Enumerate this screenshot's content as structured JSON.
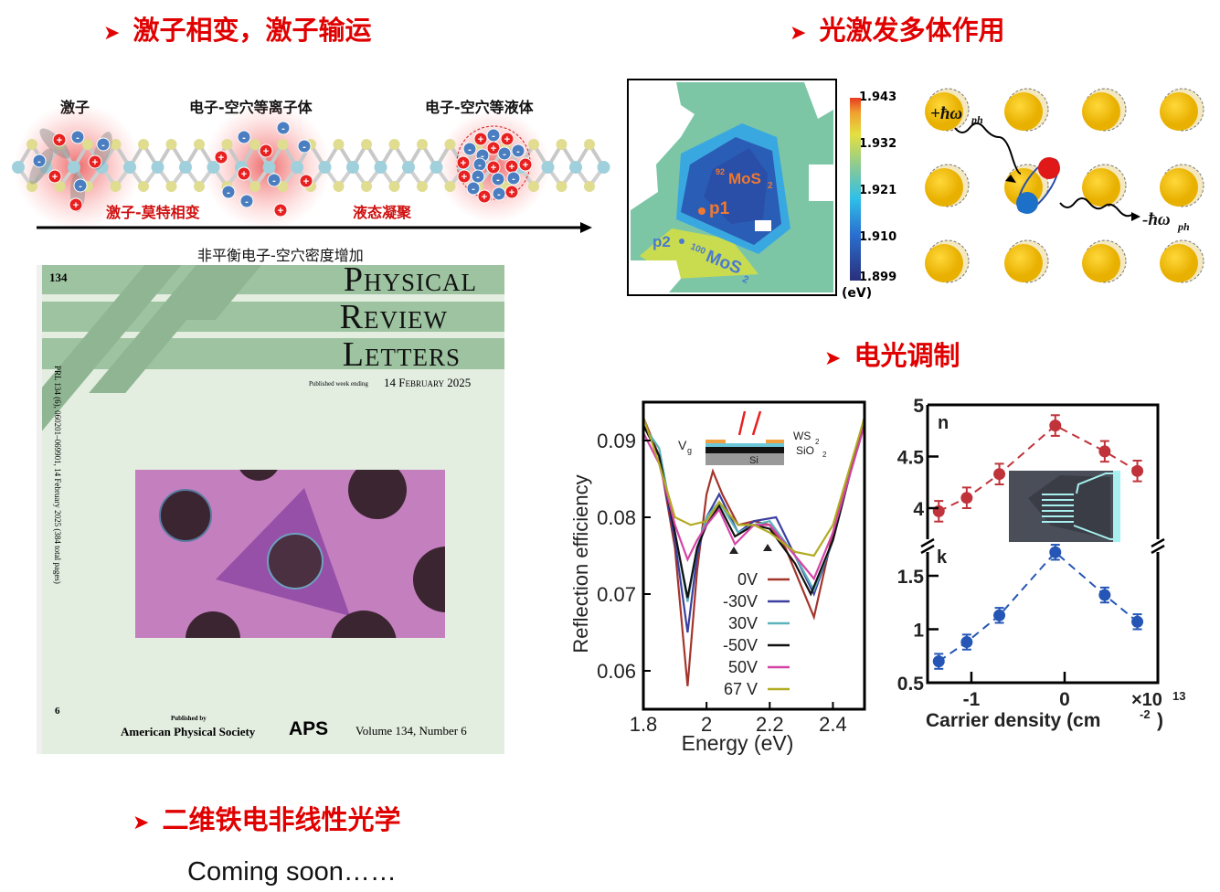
{
  "headings": {
    "exciton": "激子相变，激子输运",
    "manybody": "光激发多体作用",
    "electro_optic": "电光调制",
    "ferroelectric": "二维铁电非线性光学"
  },
  "bullet_icon": "arrow-bullet",
  "coming_soon": "Coming soon……",
  "lattice_diagram": {
    "labels": [
      "激子",
      "电子-空穴等离子体",
      "电子-空穴等液体"
    ],
    "transitions": [
      "激子-莫特相变",
      "液态凝聚"
    ],
    "axis_label": "非平衡电子-空穴密度增加"
  },
  "cover": {
    "volume_num": "134",
    "title": [
      "P",
      "HYSICAL",
      "R",
      "EVIEW",
      "L",
      "ETTERS"
    ],
    "published_week": "Published week ending",
    "date": "14 February 2025",
    "spine": "PRL 134 (6), 060201–069901, 14 February 2025 (384 total pages)",
    "issue_num": "6",
    "published_by": "Published by",
    "publisher": "American Physical Society",
    "aps_logo": "APS",
    "volume_info": "Volume 134, Number 6"
  },
  "pl_map": {
    "colorbar_ticks": [
      "1.943",
      "1.932",
      "1.921",
      "1.910",
      "1.899"
    ],
    "unit": "(eV)",
    "label_92": "92",
    "label_92_b": "MoS",
    "label_100": "100",
    "label_100_b": "MoS",
    "sub2": "2",
    "p1": "p1",
    "p2": "p2"
  },
  "phonon": {
    "absorb": "+ħω",
    "emit": "-ħω",
    "sub": "ph"
  },
  "colors": {
    "accent_red": "#e00000",
    "gold": "#f2c200"
  },
  "chart_data": [
    {
      "type": "line",
      "title": "",
      "xlabel": "Energy  (eV)",
      "ylabel": "Reflection efficiency",
      "xlim": [
        1.8,
        2.5
      ],
      "ylim": [
        0.055,
        0.095
      ],
      "xticks": [
        "1.8",
        "2",
        "2.2",
        "2.4"
      ],
      "xtick_values": [
        1.8,
        2.0,
        2.2,
        2.4
      ],
      "yticks": [
        "0.09",
        "0.08",
        "0.07",
        "0.06"
      ],
      "ytick_values": [
        0.09,
        0.08,
        0.07,
        0.06
      ],
      "legend_placement": "bottom-center",
      "inset_labels": {
        "vg": "V",
        "vg_sub": "g",
        "ws2": "WS",
        "sio2": "SiO",
        "sub2": "2",
        "si": "Si"
      },
      "series": [
        {
          "name": "0V",
          "color": "#a3352c",
          "x": [
            1.8,
            1.85,
            1.9,
            1.94,
            1.97,
            2.0,
            2.02,
            2.05,
            2.1,
            2.15,
            2.2,
            2.25,
            2.3,
            2.34,
            2.4,
            2.5
          ],
          "y": [
            0.093,
            0.088,
            0.076,
            0.058,
            0.073,
            0.083,
            0.086,
            0.083,
            0.079,
            0.0795,
            0.079,
            0.076,
            0.071,
            0.067,
            0.078,
            0.093
          ]
        },
        {
          "name": "-30V",
          "color": "#3b3f9f",
          "x": [
            1.8,
            1.85,
            1.9,
            1.94,
            1.97,
            2.0,
            2.04,
            2.1,
            2.15,
            2.22,
            2.28,
            2.34,
            2.4,
            2.5
          ],
          "y": [
            0.092,
            0.088,
            0.077,
            0.065,
            0.075,
            0.08,
            0.083,
            0.078,
            0.0795,
            0.08,
            0.075,
            0.07,
            0.077,
            0.093
          ]
        },
        {
          "name": "30V",
          "color": "#5bb3ba",
          "x": [
            1.8,
            1.85,
            1.9,
            1.94,
            1.97,
            2.0,
            2.04,
            2.1,
            2.15,
            2.2,
            2.28,
            2.34,
            2.4,
            2.5
          ],
          "y": [
            0.092,
            0.089,
            0.078,
            0.069,
            0.076,
            0.08,
            0.082,
            0.078,
            0.079,
            0.0795,
            0.075,
            0.0705,
            0.077,
            0.093
          ]
        },
        {
          "name": "-50V",
          "color": "#111111",
          "x": [
            1.8,
            1.85,
            1.9,
            1.94,
            1.97,
            2.0,
            2.04,
            2.09,
            2.15,
            2.2,
            2.28,
            2.33,
            2.4,
            2.5
          ],
          "y": [
            0.092,
            0.088,
            0.078,
            0.0695,
            0.076,
            0.079,
            0.0815,
            0.0775,
            0.079,
            0.0785,
            0.074,
            0.07,
            0.077,
            0.093
          ]
        },
        {
          "name": "50V",
          "color": "#d444a6",
          "x": [
            1.8,
            1.85,
            1.9,
            1.94,
            1.97,
            2.0,
            2.04,
            2.09,
            2.15,
            2.2,
            2.28,
            2.34,
            2.4,
            2.5
          ],
          "y": [
            0.091,
            0.087,
            0.079,
            0.0745,
            0.077,
            0.079,
            0.081,
            0.0765,
            0.079,
            0.079,
            0.075,
            0.072,
            0.078,
            0.092
          ]
        },
        {
          "name": "67 V",
          "color": "#b2ab22",
          "x": [
            1.8,
            1.85,
            1.9,
            1.95,
            2.0,
            2.04,
            2.1,
            2.15,
            2.2,
            2.28,
            2.34,
            2.4,
            2.5
          ],
          "y": [
            0.093,
            0.087,
            0.08,
            0.079,
            0.0795,
            0.082,
            0.079,
            0.079,
            0.078,
            0.0755,
            0.075,
            0.079,
            0.093
          ]
        }
      ]
    },
    {
      "type": "scatter",
      "title": "",
      "xlabel": "Carrier density (cm",
      "xlabel_sup": "-2",
      "xlabel_end": ")",
      "x_multiplier": "×10",
      "x_multiplier_exp": "13",
      "xlim": [
        -1.47,
        1.0
      ],
      "xticks": [
        "-1",
        "0"
      ],
      "xtick_values": [
        -1,
        0
      ],
      "panels": [
        {
          "name": "n",
          "ylim": [
            3.75,
            5.0
          ],
          "yticks": [
            "5",
            "4.5",
            "4"
          ],
          "ytick_values": [
            5,
            4.5,
            4
          ],
          "color": "#c0333a",
          "x": [
            -1.35,
            -1.05,
            -0.7,
            -0.1,
            0.43,
            0.78
          ],
          "y": [
            3.97,
            4.1,
            4.33,
            4.8,
            4.55,
            4.36
          ],
          "err": [
            0.1,
            0.1,
            0.1,
            0.1,
            0.1,
            0.1
          ]
        },
        {
          "name": "k",
          "ylim": [
            0.5,
            1.85
          ],
          "yticks": [
            "1.5",
            "1",
            "0.5"
          ],
          "ytick_values": [
            1.5,
            1,
            0.5
          ],
          "color": "#2556b5",
          "x": [
            -1.35,
            -1.05,
            -0.7,
            -0.1,
            0.43,
            0.78
          ],
          "y": [
            0.7,
            0.88,
            1.13,
            1.72,
            1.32,
            1.07
          ],
          "err": [
            0.07,
            0.07,
            0.07,
            0.07,
            0.07,
            0.07
          ]
        }
      ]
    }
  ]
}
